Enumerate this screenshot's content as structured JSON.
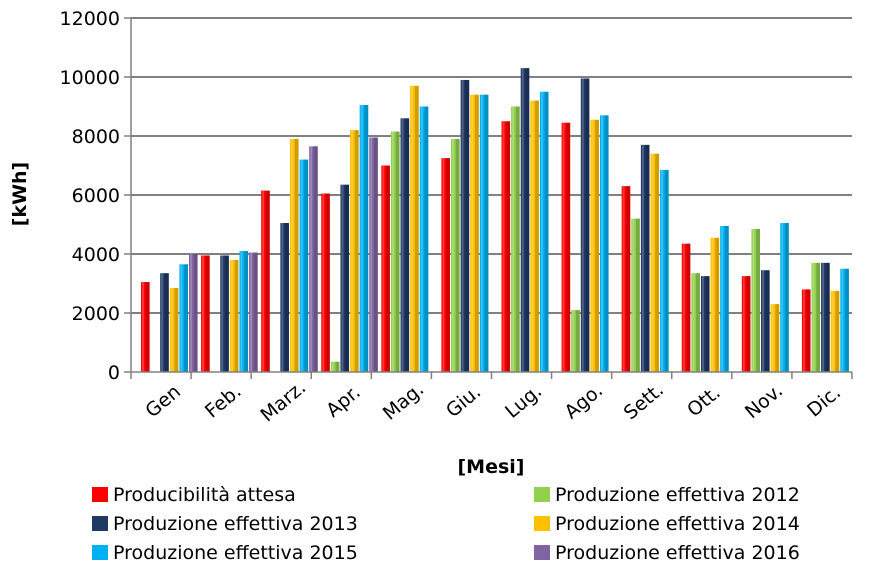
{
  "chart_data": {
    "type": "bar",
    "title": "",
    "xlabel": "[Mesi]",
    "ylabel": "[kWh]",
    "ylim": [
      0,
      12000
    ],
    "yticks": [
      0,
      2000,
      4000,
      6000,
      8000,
      10000,
      12000
    ],
    "grid": true,
    "legend_position": "bottom",
    "categories": [
      "Gen",
      "Feb.",
      "Marz.",
      "Apr.",
      "Mag.",
      "Giu.",
      "Lug.",
      "Ago.",
      "Sett.",
      "Ott.",
      "Nov.",
      "Dic."
    ],
    "series": [
      {
        "name": "Producibilità attesa",
        "color": "#ff0000",
        "values": [
          3050,
          3950,
          6150,
          6050,
          7000,
          7250,
          8500,
          8450,
          6300,
          4350,
          3250,
          2800
        ]
      },
      {
        "name": "Produzione effettiva 2012",
        "color": "#92d050",
        "values": [
          null,
          null,
          null,
          350,
          8150,
          7900,
          9000,
          2100,
          5200,
          3350,
          4850,
          3700
        ]
      },
      {
        "name": "Produzione effettiva 2013",
        "color": "#1f3864",
        "values": [
          3350,
          3950,
          5050,
          6350,
          8600,
          9900,
          10300,
          9950,
          7700,
          3250,
          3450,
          3700
        ]
      },
      {
        "name": "Produzione effettiva 2014",
        "color": "#ffc000",
        "values": [
          2850,
          3800,
          7900,
          8200,
          9700,
          9400,
          9200,
          8550,
          7400,
          4550,
          2300,
          2750
        ]
      },
      {
        "name": "Produzione effettiva 2015",
        "color": "#00b0f0",
        "values": [
          3650,
          4100,
          7200,
          9050,
          9000,
          9400,
          9500,
          8700,
          6850,
          4950,
          5050,
          3500
        ]
      },
      {
        "name": "Produzione effettiva 2016",
        "color": "#8064a2",
        "values": [
          4000,
          4050,
          7650,
          7950,
          null,
          null,
          null,
          null,
          null,
          null,
          null,
          null
        ]
      }
    ]
  }
}
